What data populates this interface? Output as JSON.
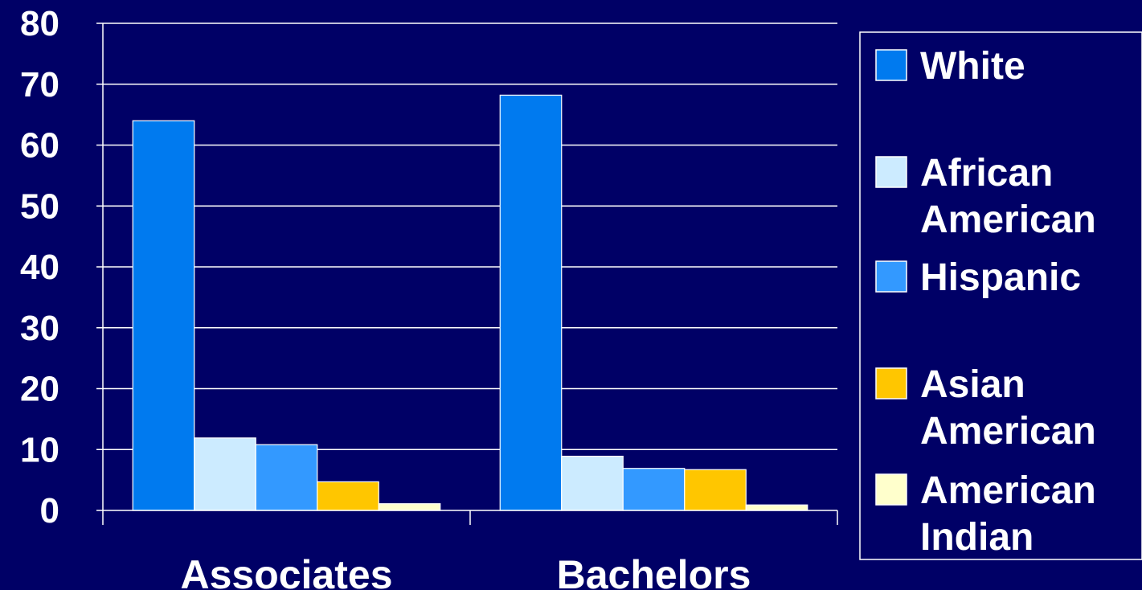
{
  "chart_data": {
    "type": "bar",
    "categories": [
      "Associates",
      "Bachelors"
    ],
    "series": [
      {
        "name": "White",
        "values": [
          64,
          68.2
        ],
        "color": "#007AEF"
      },
      {
        "name": "African American",
        "values": [
          11.9,
          8.9
        ],
        "color": "#CCEBFF"
      },
      {
        "name": "Hispanic",
        "values": [
          10.8,
          6.9
        ],
        "color": "#3399FF"
      },
      {
        "name": "Asian American",
        "values": [
          4.7,
          6.7
        ],
        "color": "#FFC600"
      },
      {
        "name": "American Indian",
        "values": [
          1.1,
          0.9
        ],
        "color": "#FFFFCC"
      }
    ],
    "ylim": [
      0,
      80
    ],
    "yticks": [
      "0",
      "10",
      "20",
      "30",
      "40",
      "50",
      "60",
      "70",
      "80"
    ],
    "grid": true,
    "legend_position": "right",
    "title": "",
    "xlabel": "",
    "ylabel": ""
  },
  "colors": {
    "background": "#000066",
    "axis": "#ffffff",
    "text": "#ffffff"
  }
}
